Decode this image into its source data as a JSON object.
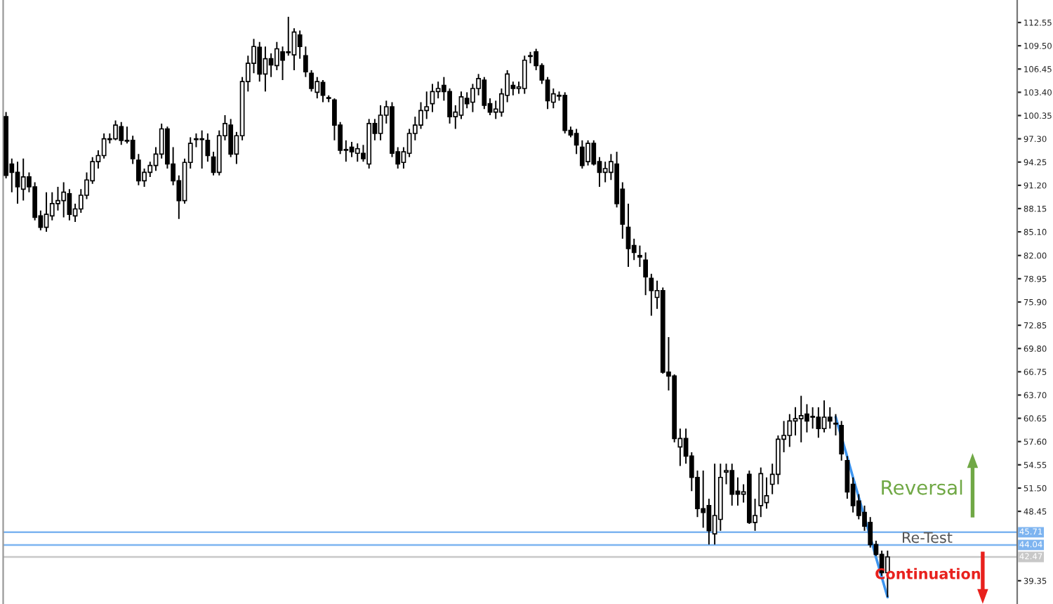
{
  "chart_data": {
    "type": "candlestick",
    "categories": [
      null,
      null,
      null,
      null,
      null,
      null,
      null,
      null,
      null,
      null,
      null,
      null,
      null,
      null,
      null,
      null,
      null,
      null,
      null,
      null,
      null,
      null,
      null,
      null,
      null,
      null,
      null,
      null,
      null,
      null,
      null,
      null,
      null,
      null,
      null,
      null,
      null,
      null,
      null,
      null,
      null,
      null,
      null,
      null,
      null,
      null,
      null,
      null,
      null,
      null,
      null,
      null,
      null,
      null,
      null,
      null,
      null,
      null,
      null,
      null,
      null,
      null,
      null,
      null,
      null,
      null,
      null,
      null,
      null,
      null,
      null,
      null,
      null,
      null,
      null,
      null,
      null,
      null,
      null,
      null,
      null,
      null,
      null,
      null,
      null,
      null,
      null,
      null,
      null,
      null,
      null,
      null,
      null,
      null,
      null,
      null,
      null,
      null,
      null,
      null,
      null,
      null,
      null,
      null,
      null,
      null,
      null,
      null,
      null,
      null,
      null,
      null,
      null,
      null,
      null,
      null,
      null,
      null,
      null,
      null,
      null,
      null,
      null,
      null,
      null,
      null,
      null,
      null,
      null,
      null,
      null,
      null,
      null,
      null,
      null,
      null,
      null,
      null,
      null,
      null,
      null,
      null,
      null,
      null,
      null,
      null,
      null,
      null,
      null,
      null,
      null,
      null,
      null,
      null,
      null,
      null,
      null,
      null,
      null,
      null,
      null,
      null,
      null,
      null,
      null,
      null,
      null,
      null,
      null,
      null,
      null,
      null,
      null,
      null,
      null,
      null
    ],
    "ohlc": [
      [
        100.2,
        100.8,
        92.1,
        92.5
      ],
      [
        94.0,
        94.7,
        90.3,
        92.9
      ],
      [
        92.9,
        94.3,
        88.8,
        91.0
      ],
      [
        90.7,
        94.7,
        89.2,
        92.3
      ],
      [
        92.3,
        92.9,
        90.3,
        91.0
      ],
      [
        91.0,
        91.6,
        86.6,
        87.0
      ],
      [
        87.2,
        87.9,
        85.3,
        85.7
      ],
      [
        85.7,
        90.3,
        85.1,
        87.4
      ],
      [
        87.2,
        90.3,
        86.6,
        88.8
      ],
      [
        88.8,
        91.0,
        87.9,
        89.2
      ],
      [
        89.2,
        91.6,
        87.0,
        90.3
      ],
      [
        90.1,
        90.7,
        86.6,
        87.4
      ],
      [
        87.2,
        88.8,
        86.4,
        88.1
      ],
      [
        88.1,
        90.7,
        87.6,
        89.9
      ],
      [
        89.9,
        92.9,
        89.4,
        91.9
      ],
      [
        91.8,
        94.9,
        91.4,
        94.3
      ],
      [
        94.3,
        95.8,
        93.4,
        95.1
      ],
      [
        95.1,
        98.0,
        94.7,
        97.3
      ],
      [
        97.3,
        98.0,
        96.7,
        97.2
      ],
      [
        97.3,
        99.7,
        97.1,
        99.1
      ],
      [
        98.9,
        99.5,
        96.5,
        97.1
      ],
      [
        97.1,
        98.9,
        96.7,
        97.0
      ],
      [
        97.1,
        97.7,
        94.0,
        94.7
      ],
      [
        94.5,
        95.3,
        91.2,
        91.8
      ],
      [
        91.8,
        93.4,
        91.0,
        92.9
      ],
      [
        92.9,
        94.3,
        92.3,
        93.8
      ],
      [
        93.8,
        96.2,
        93.1,
        95.3
      ],
      [
        95.3,
        99.3,
        94.7,
        98.6
      ],
      [
        98.6,
        98.9,
        93.4,
        94.0
      ],
      [
        94.0,
        96.2,
        91.2,
        91.8
      ],
      [
        91.8,
        92.5,
        86.8,
        89.2
      ],
      [
        89.2,
        94.7,
        88.8,
        94.2
      ],
      [
        94.2,
        97.5,
        93.4,
        96.7
      ],
      [
        97.2,
        98.0,
        96.2,
        97.3
      ],
      [
        97.3,
        98.4,
        93.4,
        97.2
      ],
      [
        97.1,
        98.0,
        94.3,
        95.1
      ],
      [
        94.9,
        95.6,
        92.5,
        92.9
      ],
      [
        92.9,
        98.4,
        92.5,
        97.7
      ],
      [
        97.7,
        100.4,
        97.1,
        99.3
      ],
      [
        99.1,
        99.9,
        94.9,
        95.3
      ],
      [
        95.3,
        98.2,
        94.0,
        97.7
      ],
      [
        97.7,
        105.4,
        97.1,
        104.8
      ],
      [
        104.8,
        108.2,
        103.5,
        107.2
      ],
      [
        107.2,
        110.4,
        105.9,
        109.4
      ],
      [
        109.3,
        110.0,
        104.8,
        105.8
      ],
      [
        105.8,
        109.4,
        103.5,
        107.8
      ],
      [
        107.8,
        108.5,
        105.4,
        107.0
      ],
      [
        106.9,
        110.0,
        106.3,
        109.1
      ],
      [
        108.7,
        109.4,
        105.0,
        107.6
      ],
      [
        108.6,
        113.3,
        108.2,
        108.7
      ],
      [
        108.3,
        111.8,
        106.3,
        111.3
      ],
      [
        110.9,
        111.5,
        107.8,
        109.4
      ],
      [
        108.2,
        109.4,
        105.4,
        106.1
      ],
      [
        105.9,
        106.3,
        103.5,
        103.9
      ],
      [
        103.4,
        105.4,
        102.6,
        104.8
      ],
      [
        104.7,
        105.0,
        102.1,
        103.0
      ],
      [
        102.7,
        103.0,
        102.1,
        102.6
      ],
      [
        102.4,
        102.6,
        97.1,
        99.1
      ],
      [
        99.1,
        99.5,
        95.3,
        95.8
      ],
      [
        95.9,
        97.1,
        94.3,
        95.8
      ],
      [
        96.2,
        96.9,
        94.9,
        95.6
      ],
      [
        95.4,
        96.7,
        94.3,
        96.0
      ],
      [
        95.4,
        96.5,
        94.3,
        94.7
      ],
      [
        94.0,
        99.9,
        93.4,
        99.3
      ],
      [
        99.3,
        99.9,
        97.1,
        98.0
      ],
      [
        98.0,
        101.7,
        97.1,
        100.4
      ],
      [
        100.4,
        102.3,
        99.3,
        101.5
      ],
      [
        101.5,
        102.1,
        94.9,
        95.4
      ],
      [
        95.6,
        96.2,
        93.4,
        94.0
      ],
      [
        94.2,
        96.2,
        93.4,
        95.6
      ],
      [
        95.4,
        98.6,
        94.9,
        98.0
      ],
      [
        98.0,
        100.2,
        97.1,
        99.1
      ],
      [
        99.1,
        102.1,
        98.6,
        101.0
      ],
      [
        101.0,
        103.5,
        99.9,
        101.5
      ],
      [
        101.9,
        104.5,
        100.8,
        103.5
      ],
      [
        103.5,
        104.8,
        102.6,
        103.9
      ],
      [
        104.3,
        105.4,
        102.3,
        103.5
      ],
      [
        103.5,
        103.9,
        99.3,
        100.2
      ],
      [
        100.2,
        101.7,
        98.6,
        100.8
      ],
      [
        100.4,
        103.5,
        99.9,
        102.8
      ],
      [
        102.6,
        103.4,
        101.3,
        101.9
      ],
      [
        102.1,
        104.5,
        100.8,
        103.9
      ],
      [
        103.9,
        105.8,
        103.0,
        105.2
      ],
      [
        105.0,
        105.4,
        101.2,
        101.7
      ],
      [
        101.9,
        102.6,
        100.4,
        100.8
      ],
      [
        100.8,
        102.3,
        99.9,
        101.2
      ],
      [
        100.8,
        103.9,
        100.2,
        103.2
      ],
      [
        103.0,
        106.3,
        102.1,
        105.8
      ],
      [
        104.3,
        104.8,
        103.0,
        103.9
      ],
      [
        103.9,
        104.8,
        103.2,
        104.1
      ],
      [
        103.9,
        108.2,
        103.2,
        107.6
      ],
      [
        108.1,
        108.7,
        107.2,
        108.2
      ],
      [
        108.7,
        109.1,
        106.3,
        106.9
      ],
      [
        106.9,
        107.2,
        104.5,
        105.0
      ],
      [
        105.0,
        105.4,
        101.2,
        102.3
      ],
      [
        102.1,
        103.9,
        101.3,
        103.2
      ],
      [
        103.0,
        103.5,
        102.3,
        102.9
      ],
      [
        103.0,
        103.4,
        98.0,
        98.4
      ],
      [
        98.4,
        98.9,
        97.5,
        97.8
      ],
      [
        98.0,
        98.6,
        95.3,
        96.5
      ],
      [
        96.2,
        97.1,
        93.4,
        93.8
      ],
      [
        94.3,
        97.1,
        93.8,
        96.7
      ],
      [
        96.7,
        97.1,
        93.8,
        94.0
      ],
      [
        94.3,
        94.9,
        91.0,
        92.9
      ],
      [
        92.9,
        94.3,
        91.6,
        93.4
      ],
      [
        92.9,
        95.3,
        91.9,
        94.3
      ],
      [
        94.0,
        95.6,
        88.3,
        88.8
      ],
      [
        90.7,
        91.6,
        84.2,
        86.1
      ],
      [
        85.7,
        88.8,
        80.5,
        82.9
      ],
      [
        83.3,
        84.2,
        81.4,
        82.4
      ],
      [
        82.0,
        83.3,
        80.5,
        81.8
      ],
      [
        81.4,
        82.4,
        76.8,
        79.2
      ],
      [
        79.0,
        79.6,
        74.1,
        77.4
      ],
      [
        76.5,
        78.7,
        75.0,
        77.4
      ],
      [
        77.4,
        77.8,
        66.5,
        66.7
      ],
      [
        66.7,
        71.3,
        64.3,
        66.2
      ],
      [
        66.2,
        66.4,
        57.5,
        58.0
      ],
      [
        56.9,
        59.3,
        54.4,
        58.0
      ],
      [
        58.0,
        59.3,
        54.7,
        55.7
      ],
      [
        55.7,
        56.2,
        51.1,
        52.9
      ],
      [
        52.9,
        53.8,
        47.7,
        48.8
      ],
      [
        48.8,
        53.8,
        46.3,
        48.3
      ],
      [
        49.2,
        50.1,
        44.1,
        45.9
      ],
      [
        45.5,
        54.7,
        44.1,
        47.9
      ],
      [
        47.4,
        54.7,
        45.9,
        52.9
      ],
      [
        53.6,
        54.7,
        52.0,
        53.8
      ],
      [
        53.8,
        54.7,
        49.2,
        50.7
      ],
      [
        51.1,
        52.9,
        49.2,
        50.7
      ],
      [
        50.7,
        52.0,
        49.6,
        51.0
      ],
      [
        53.3,
        53.8,
        46.8,
        47.0
      ],
      [
        47.0,
        50.1,
        45.9,
        47.9
      ],
      [
        49.2,
        54.2,
        47.7,
        53.4
      ],
      [
        49.6,
        52.9,
        48.8,
        50.5
      ],
      [
        52.0,
        54.7,
        50.7,
        53.3
      ],
      [
        53.3,
        58.4,
        52.0,
        57.9
      ],
      [
        57.9,
        60.3,
        56.2,
        58.4
      ],
      [
        58.4,
        61.2,
        56.9,
        60.3
      ],
      [
        60.3,
        62.1,
        58.4,
        60.6
      ],
      [
        60.6,
        63.6,
        57.5,
        61.0
      ],
      [
        61.2,
        62.5,
        58.8,
        60.3
      ],
      [
        60.8,
        62.1,
        59.3,
        60.9
      ],
      [
        60.8,
        62.1,
        58.1,
        59.3
      ],
      [
        59.3,
        63.0,
        58.8,
        60.8
      ],
      [
        60.8,
        62.1,
        59.3,
        60.3
      ],
      [
        60.0,
        61.2,
        58.4,
        59.9
      ],
      [
        59.7,
        60.3,
        55.1,
        56.0
      ],
      [
        55.1,
        55.7,
        50.1,
        51.0
      ],
      [
        52.0,
        52.9,
        48.3,
        49.2
      ],
      [
        49.8,
        50.7,
        47.4,
        47.9
      ],
      [
        48.3,
        49.2,
        45.9,
        46.5
      ],
      [
        47.0,
        47.7,
        43.7,
        44.1
      ],
      [
        44.1,
        44.6,
        42.6,
        42.8
      ],
      [
        42.8,
        43.3,
        40.0,
        40.4
      ],
      [
        40.4,
        43.3,
        37.2,
        42.47
      ],
      null,
      null,
      null,
      null,
      null,
      null,
      null,
      null,
      null,
      null,
      null,
      null,
      null,
      null,
      null,
      null,
      null,
      null,
      null,
      null,
      null,
      null
    ],
    "series": [
      {
        "type": "line",
        "color": "#3d95f0",
        "values": [
          null,
          null,
          null,
          null,
          null,
          null,
          null,
          null,
          null,
          null,
          null,
          null,
          null,
          null,
          null,
          null,
          null,
          null,
          null,
          null,
          null,
          null,
          null,
          null,
          null,
          null,
          null,
          null,
          null,
          null,
          null,
          null,
          null,
          null,
          null,
          null,
          null,
          null,
          null,
          null,
          null,
          null,
          null,
          null,
          null,
          null,
          null,
          null,
          null,
          null,
          null,
          null,
          null,
          null,
          null,
          null,
          null,
          null,
          null,
          null,
          null,
          null,
          null,
          null,
          null,
          null,
          null,
          null,
          null,
          null,
          null,
          null,
          null,
          null,
          null,
          null,
          null,
          null,
          null,
          null,
          null,
          null,
          null,
          null,
          null,
          null,
          null,
          null,
          null,
          null,
          null,
          null,
          null,
          null,
          null,
          null,
          null,
          null,
          null,
          null,
          null,
          null,
          null,
          null,
          null,
          null,
          null,
          null,
          null,
          null,
          null,
          null,
          null,
          null,
          null,
          null,
          null,
          null,
          null,
          null,
          null,
          null,
          null,
          null,
          null,
          null,
          null,
          null,
          null,
          null,
          null,
          null,
          null,
          null,
          null,
          null,
          null,
          null,
          null,
          null,
          null,
          null,
          null,
          null,
          60.8,
          58.2,
          55.6,
          52.9,
          50.3,
          47.7,
          45.1,
          42.4,
          39.8,
          37.2,
          null,
          null,
          null,
          null,
          null,
          null,
          null,
          null,
          null,
          null,
          null,
          null,
          null,
          null,
          null,
          null,
          null,
          null,
          null,
          null,
          null,
          null
        ]
      }
    ],
    "ylim": [
      36.3,
      115.5
    ],
    "yticks": [
      {
        "value": 112.55,
        "label": "112.55"
      },
      {
        "value": 109.5,
        "label": "109.50"
      },
      {
        "value": 106.45,
        "label": "106.45"
      },
      {
        "value": 103.4,
        "label": "103.40"
      },
      {
        "value": 100.35,
        "label": "100.35"
      },
      {
        "value": 97.3,
        "label": "97.30"
      },
      {
        "value": 94.25,
        "label": "94.25"
      },
      {
        "value": 91.2,
        "label": "91.20"
      },
      {
        "value": 88.15,
        "label": "88.15"
      },
      {
        "value": 85.1,
        "label": "85.10"
      },
      {
        "value": 82.0,
        "label": "82.00"
      },
      {
        "value": 78.95,
        "label": "78.95"
      },
      {
        "value": 75.9,
        "label": "75.90"
      },
      {
        "value": 72.85,
        "label": "72.85"
      },
      {
        "value": 69.8,
        "label": "69.80"
      },
      {
        "value": 66.75,
        "label": "66.75"
      },
      {
        "value": 63.7,
        "label": "63.70"
      },
      {
        "value": 60.65,
        "label": "60.65"
      },
      {
        "value": 57.6,
        "label": "57.60"
      },
      {
        "value": 54.55,
        "label": "54.55"
      },
      {
        "value": 51.5,
        "label": "51.50"
      },
      {
        "value": 48.45,
        "label": "48.45"
      },
      {
        "value": 39.35,
        "label": "39.35"
      }
    ],
    "ref_lines": [
      {
        "axis": "y",
        "value": 45.71,
        "label": "45.71",
        "color": "#7db4f0"
      },
      {
        "axis": "y",
        "value": 44.04,
        "label": "44.04",
        "color": "#7db4f0"
      },
      {
        "axis": "y",
        "value": 42.47,
        "label": "42.47",
        "color": "#c8c8c8"
      }
    ],
    "annotations": [
      "Reversal",
      "Re-Test",
      "Continuation"
    ],
    "tick_labels": "y",
    "grid": false,
    "legend": false
  }
}
